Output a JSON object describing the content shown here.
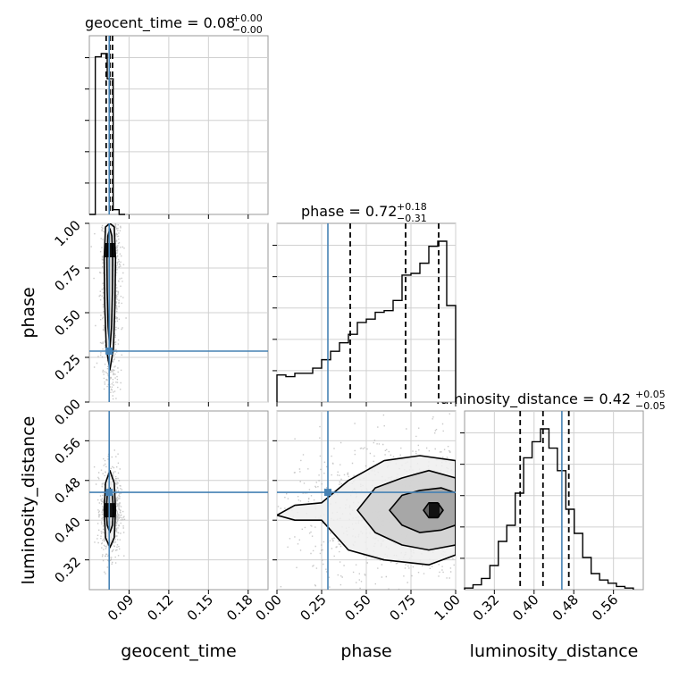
{
  "chart_data": {
    "type": "corner",
    "parameters": [
      "geocent_time",
      "phase",
      "luminosity_distance"
    ],
    "truth": {
      "geocent_time": 0.075,
      "phase": 0.285,
      "luminosity_distance": 0.456
    },
    "axes": {
      "geocent_time": {
        "range": [
          0.06,
          0.195
        ],
        "ticks": [
          "0.09",
          "0.12",
          "0.15",
          "0.18"
        ]
      },
      "phase": {
        "range": [
          0.0,
          1.0
        ],
        "ticks": [
          "0.00",
          "0.25",
          "0.50",
          "0.75",
          "1.00"
        ]
      },
      "luminosity_distance": {
        "range": [
          0.26,
          0.62
        ],
        "ticks": [
          "0.32",
          "0.40",
          "0.48",
          "0.56"
        ]
      }
    },
    "panels": [
      {
        "kind": "histogram",
        "param": "geocent_time",
        "title": {
          "main": "geocent_time = 0.08",
          "sup": "+0.00",
          "sub": "−0.00"
        },
        "quantiles": [
          0.0727,
          0.0755,
          0.0775
        ],
        "edges": [
          0.06,
          0.0645,
          0.069,
          0.0735,
          0.078,
          0.0825,
          0.087
        ],
        "counts": [
          0.0,
          1.0,
          1.02,
          0.86,
          0.03,
          0.0
        ]
      },
      {
        "kind": "histogram",
        "param": "phase",
        "title": {
          "main": "phase = 0.72",
          "sup": "+0.18",
          "sub": "−0.31"
        },
        "quantiles": [
          0.41,
          0.72,
          0.905
        ],
        "edges": [
          0,
          0.05,
          0.1,
          0.15,
          0.2,
          0.25,
          0.3,
          0.35,
          0.4,
          0.45,
          0.5,
          0.55,
          0.6,
          0.65,
          0.7,
          0.75,
          0.8,
          0.85,
          0.9,
          0.95,
          1.0
        ],
        "counts": [
          0.16,
          0.15,
          0.17,
          0.17,
          0.2,
          0.25,
          0.3,
          0.35,
          0.4,
          0.47,
          0.49,
          0.53,
          0.54,
          0.6,
          0.75,
          0.76,
          0.82,
          0.92,
          0.95,
          0.57
        ]
      },
      {
        "kind": "histogram",
        "param": "luminosity_distance",
        "title": {
          "main": "luminosity_distance = 0.42",
          "sup": "+0.05",
          "sub": "−0.05"
        },
        "quantiles": [
          0.372,
          0.418,
          0.47
        ],
        "edges": [
          0.26,
          0.277,
          0.294,
          0.311,
          0.328,
          0.345,
          0.362,
          0.379,
          0.396,
          0.413,
          0.43,
          0.447,
          0.464,
          0.481,
          0.498,
          0.515,
          0.532,
          0.549,
          0.566,
          0.583,
          0.6
        ],
        "counts": [
          0.01,
          0.03,
          0.07,
          0.15,
          0.3,
          0.4,
          0.6,
          0.82,
          0.92,
          1.0,
          0.88,
          0.74,
          0.5,
          0.35,
          0.2,
          0.1,
          0.06,
          0.04,
          0.02,
          0.01
        ]
      },
      {
        "kind": "density",
        "x": "geocent_time",
        "y": "phase",
        "dense_region": {
          "x": [
            0.072,
            0.078
          ],
          "y": [
            0.55,
            1.0
          ]
        },
        "peak": {
          "x": 0.0755,
          "y": 0.85
        },
        "contours": [
          [
            [
              0.0755,
              0.3
            ],
            [
              0.0742,
              0.42
            ],
            [
              0.0735,
              0.62
            ],
            [
              0.0733,
              0.8
            ],
            [
              0.074,
              0.93
            ],
            [
              0.0755,
              0.97
            ],
            [
              0.077,
              0.93
            ],
            [
              0.0777,
              0.8
            ],
            [
              0.0775,
              0.62
            ],
            [
              0.0768,
              0.42
            ]
          ],
          [
            [
              0.0755,
              0.18
            ],
            [
              0.0728,
              0.3
            ],
            [
              0.0716,
              0.55
            ],
            [
              0.0712,
              0.8
            ],
            [
              0.0722,
              0.98
            ],
            [
              0.0755,
              1.0
            ],
            [
              0.0788,
              0.98
            ],
            [
              0.0798,
              0.8
            ],
            [
              0.0794,
              0.55
            ],
            [
              0.0782,
              0.3
            ]
          ]
        ]
      },
      {
        "kind": "density",
        "x": "geocent_time",
        "y": "luminosity_distance",
        "dense_region": {
          "x": [
            0.0725,
            0.0785
          ],
          "y": [
            0.385,
            0.455
          ]
        },
        "peak": {
          "x": 0.0755,
          "y": 0.42
        },
        "contours": [
          [
            [
              0.0755,
              0.375
            ],
            [
              0.0735,
              0.39
            ],
            [
              0.0728,
              0.42
            ],
            [
              0.0735,
              0.45
            ],
            [
              0.0755,
              0.465
            ],
            [
              0.0775,
              0.45
            ],
            [
              0.0782,
              0.42
            ],
            [
              0.0775,
              0.39
            ]
          ],
          [
            [
              0.0755,
              0.345
            ],
            [
              0.0722,
              0.365
            ],
            [
              0.0712,
              0.42
            ],
            [
              0.0722,
              0.475
            ],
            [
              0.0755,
              0.5
            ],
            [
              0.0788,
              0.475
            ],
            [
              0.0798,
              0.42
            ],
            [
              0.0788,
              0.365
            ]
          ]
        ]
      },
      {
        "kind": "density",
        "x": "phase",
        "y": "luminosity_distance",
        "dense_region": {
          "x": [
            0.4,
            1.0
          ],
          "y": [
            0.36,
            0.48
          ]
        },
        "peak": {
          "x": 0.88,
          "y": 0.42
        },
        "contours": [
          [
            [
              0.82,
              0.42
            ],
            [
              0.85,
              0.405
            ],
            [
              0.9,
              0.405
            ],
            [
              0.93,
              0.42
            ],
            [
              0.9,
              0.435
            ],
            [
              0.85,
              0.435
            ]
          ],
          [
            [
              0.63,
              0.42
            ],
            [
              0.7,
              0.39
            ],
            [
              0.8,
              0.375
            ],
            [
              0.92,
              0.38
            ],
            [
              1.0,
              0.39
            ],
            [
              1.0,
              0.455
            ],
            [
              0.92,
              0.465
            ],
            [
              0.8,
              0.46
            ],
            [
              0.7,
              0.45
            ]
          ],
          [
            [
              0.45,
              0.42
            ],
            [
              0.55,
              0.375
            ],
            [
              0.7,
              0.35
            ],
            [
              0.85,
              0.34
            ],
            [
              1.0,
              0.35
            ],
            [
              1.0,
              0.485
            ],
            [
              0.85,
              0.5
            ],
            [
              0.7,
              0.485
            ],
            [
              0.55,
              0.465
            ]
          ],
          [
            [
              0.0,
              0.41
            ],
            [
              0.1,
              0.43
            ],
            [
              0.25,
              0.435
            ],
            [
              0.4,
              0.48
            ],
            [
              0.6,
              0.52
            ],
            [
              0.8,
              0.53
            ],
            [
              1.0,
              0.52
            ],
            [
              1.0,
              0.33
            ],
            [
              0.85,
              0.31
            ],
            [
              0.6,
              0.32
            ],
            [
              0.4,
              0.34
            ],
            [
              0.25,
              0.4
            ],
            [
              0.1,
              0.4
            ]
          ]
        ]
      }
    ]
  }
}
